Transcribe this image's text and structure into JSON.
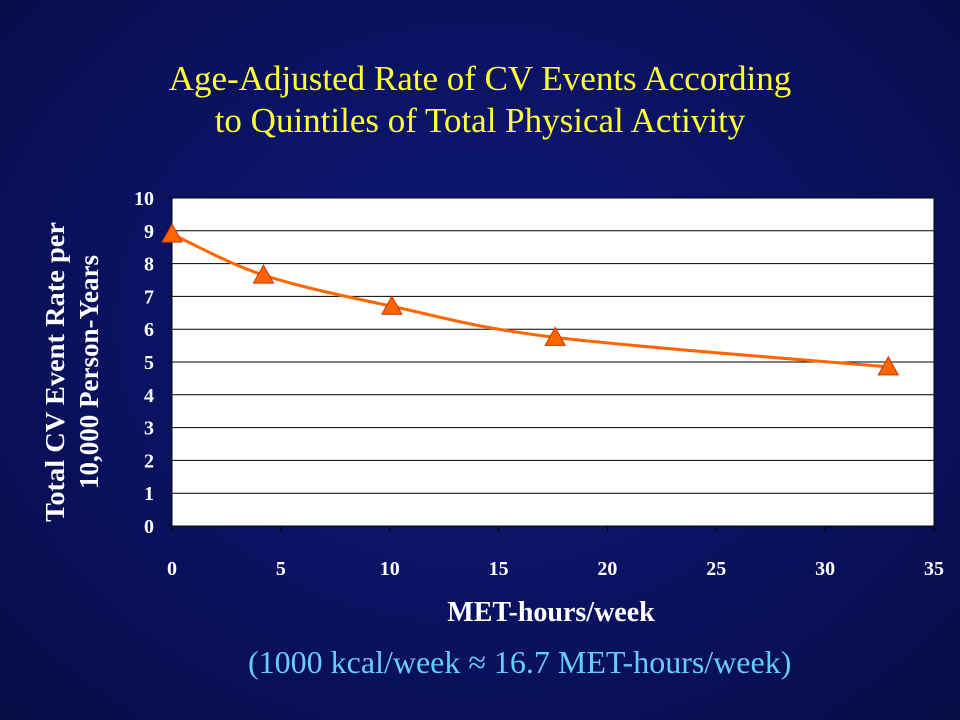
{
  "title_lines": [
    "Age-Adjusted Rate of CV Events According",
    "to Quintiles of Total Physical Activity"
  ],
  "note": "(1000 kcal/week  ≈ 16.7 MET-hours/week)",
  "colors": {
    "title": "#ffff33",
    "axis_text": "#ffffff",
    "plot_bg": "#ffffff",
    "series": "#ff6600",
    "note": "#66ccff"
  },
  "chart_data": {
    "type": "scatter",
    "title": "",
    "xlabel": "MET-hours/week",
    "ylabel_lines": [
      "Total CV Event Rate per",
      "10,000 Person-Years"
    ],
    "xlim": [
      0,
      35
    ],
    "ylim": [
      0,
      10
    ],
    "xticks": [
      0,
      5,
      10,
      15,
      20,
      25,
      30,
      35
    ],
    "yticks": [
      0,
      1,
      2,
      3,
      4,
      5,
      6,
      7,
      8,
      9,
      10
    ],
    "grid": true,
    "marker": "triangle",
    "trendline": "smooth",
    "series": [
      {
        "name": "",
        "x": [
          0,
          4.2,
          10.1,
          17.6,
          32.9
        ],
        "y": [
          8.9,
          7.65,
          6.7,
          5.75,
          4.85
        ]
      }
    ]
  }
}
